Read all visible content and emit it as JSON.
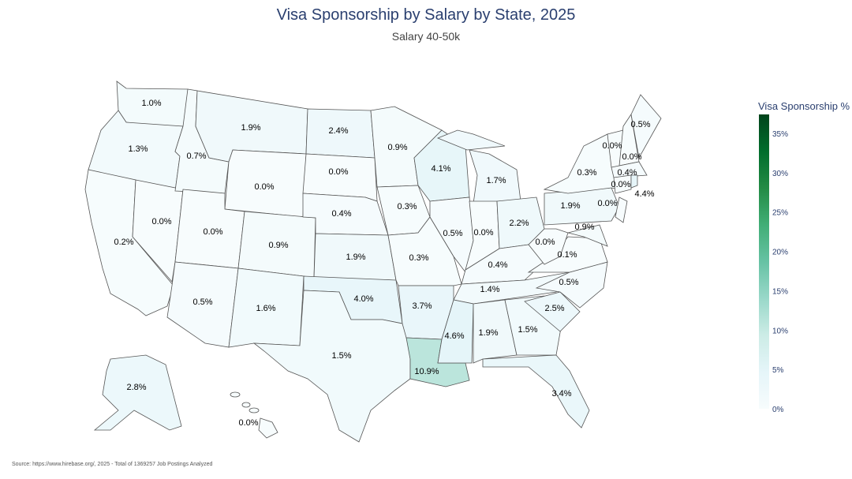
{
  "title": "Visa Sponsorship by Salary by State, 2025",
  "subtitle": "Salary 40-50k",
  "source": "Source: https://www.hirebase.org/, 2025 - Total of 1369257 Job Postings Analyzed",
  "chart_data": {
    "type": "choropleth",
    "title": "Visa Sponsorship by Salary by State, 2025",
    "subtitle": "Salary 40-50k",
    "colorbar": {
      "title": "Visa Sponsorship %",
      "range": [
        0,
        37.4
      ],
      "ticks": [
        "0%",
        "5%",
        "10%",
        "15%",
        "20%",
        "25%",
        "30%",
        "35%"
      ],
      "tick_values": [
        0,
        5,
        10,
        15,
        20,
        25,
        30,
        35
      ],
      "colorscale": [
        "#f7fcfd",
        "#e5f5f9",
        "#ccece6",
        "#99d8c9",
        "#66c2a4",
        "#41ae76",
        "#238b45",
        "#006d2c",
        "#00441b"
      ]
    },
    "values": {
      "WA": 1.0,
      "OR": 1.3,
      "CA": 0.2,
      "NV": 0.0,
      "ID": 0.7,
      "MT": 1.9,
      "WY": 0.0,
      "UT": 0.0,
      "CO": 0.9,
      "AZ": 0.5,
      "NM": 1.6,
      "ND": 2.4,
      "SD": 0.0,
      "NE": 0.4,
      "KS": 1.9,
      "OK": 4.0,
      "TX": 1.5,
      "MN": 0.9,
      "IA": 0.3,
      "MO": 0.3,
      "AR": 3.7,
      "LA": 10.9,
      "WI": 4.1,
      "IL": 0.5,
      "MI": 1.7,
      "IN": 0.0,
      "OH": 2.2,
      "KY": 0.4,
      "TN": 1.4,
      "MS": 4.6,
      "AL": 1.9,
      "GA": 1.5,
      "FL": 3.4,
      "SC": 2.5,
      "NC": 0.5,
      "VA": 0.1,
      "WV": 0.0,
      "PA": 1.9,
      "NY": 0.3,
      "VT": 0.0,
      "NH": 0.0,
      "ME": 0.5,
      "MA": 0.4,
      "CT": 0.0,
      "RI": 4.4,
      "NJ": 0.0,
      "MD": 0.9,
      "AK": 2.8,
      "HI": 0.0
    }
  }
}
